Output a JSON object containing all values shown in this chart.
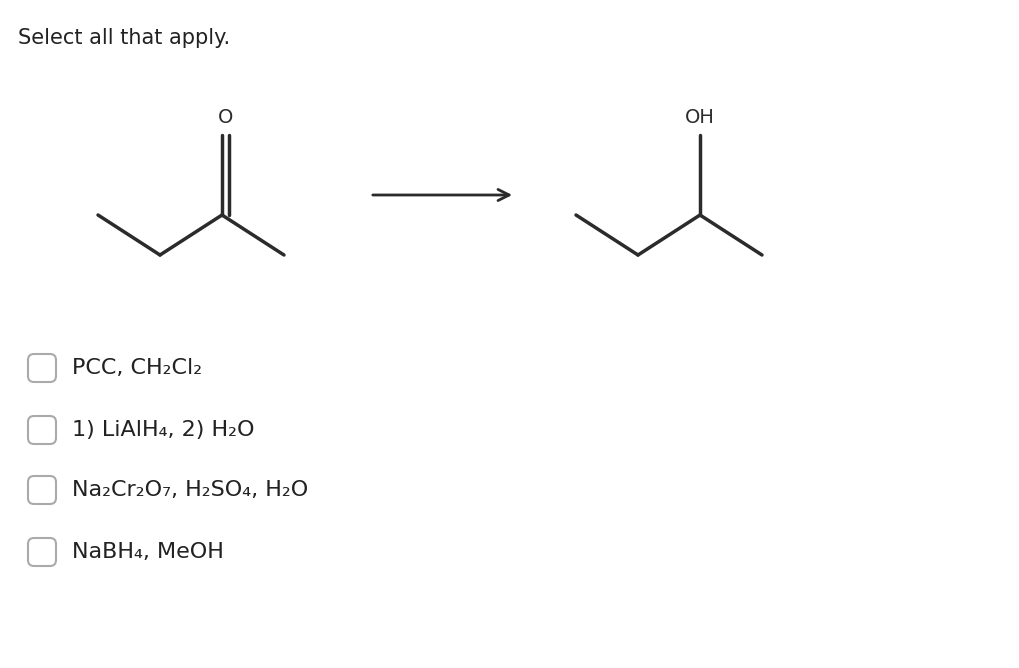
{
  "background_color": "#ffffff",
  "title_text": "Select all that apply.",
  "title_fontsize": 15,
  "title_color": "#222222",
  "line_color": "#2b2b2b",
  "line_width": 2.5,
  "choices": [
    "PCC, CH₂Cl₂",
    "1) LiAlH₄, 2) H₂O",
    "Na₂Cr₂O₇, H₂SO₄, H₂O",
    "NaBH₄, MeOH"
  ],
  "choices_fontsize": 16,
  "checkbox_color": "#aaaaaa"
}
